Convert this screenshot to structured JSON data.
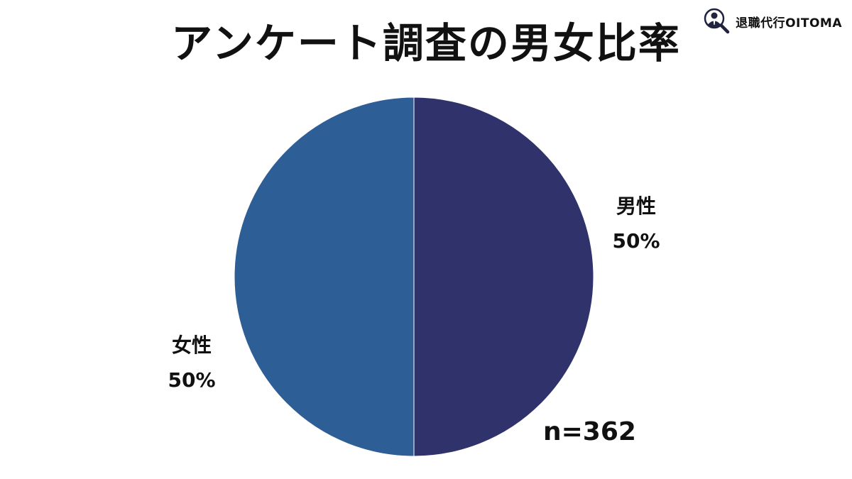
{
  "title": "アンケート調査の男女比率",
  "logo": {
    "text": "退職代行OITOMA",
    "icon": "person-magnifier-icon"
  },
  "note": "n=362",
  "chart_data": {
    "type": "pie",
    "slices": [
      {
        "label": "男性",
        "value": 50,
        "value_label": "50%",
        "color": "#30336b"
      },
      {
        "label": "女性",
        "value": 50,
        "value_label": "50%",
        "color": "#2e5e96"
      }
    ],
    "start": "12 o'clock",
    "direction": "clockwise",
    "legend": "none"
  }
}
